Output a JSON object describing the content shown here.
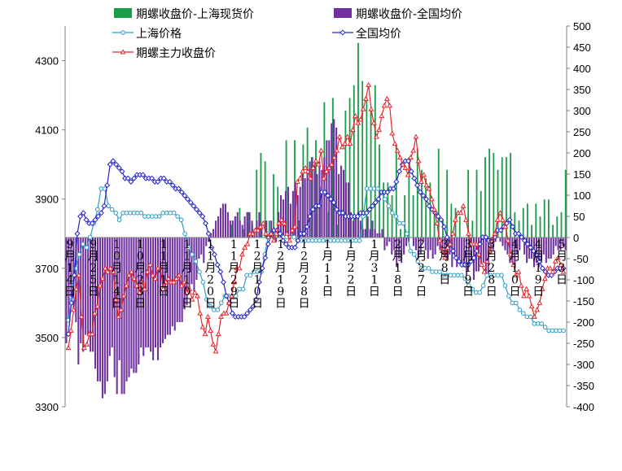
{
  "chart_data": {
    "type": "line",
    "title": "",
    "legend": {
      "placement": "top",
      "entries": [
        {
          "key": "bar_sh",
          "label": "期螺收盘价-上海现货价",
          "style": "bar"
        },
        {
          "key": "bar_nat",
          "label": "期螺收盘价-全国均价",
          "style": "bar"
        },
        {
          "key": "sh",
          "label": "上海价格",
          "style": "line-circle"
        },
        {
          "key": "nat",
          "label": "全国均价",
          "style": "line-diamond"
        },
        {
          "key": "fut",
          "label": "期螺主力收盘价",
          "style": "line-triangle"
        }
      ]
    },
    "colors": {
      "bar_sh": "#1a9c49",
      "bar_nat": "#7030a0",
      "sh": "#2e9bc4",
      "nat": "#2323c8",
      "fut": "#e8262b",
      "axis": "#808080"
    },
    "y_left": {
      "min": 3300,
      "max": 4400,
      "ticks": [
        "3300",
        "3500",
        "3700",
        "3900",
        "4100",
        "4300"
      ]
    },
    "y_right": {
      "min": -400,
      "max": 500,
      "ticks": [
        "-400",
        "-350",
        "-300",
        "-250",
        "-200",
        "-150",
        "-100",
        "-50",
        "0",
        "50",
        "100",
        "150",
        "200",
        "250",
        "300",
        "350",
        "400",
        "450",
        "500"
      ]
    },
    "x_tick_labels": [
      "9月14日",
      "9月25日",
      "10月14日",
      "10月23日",
      "11月1日",
      "11月10日",
      "11月20日",
      "11月29日",
      "12月10日",
      "12月19日",
      "12月28日",
      "1月11日",
      "1月22日",
      "1月31日",
      "2月18日",
      "2月27日",
      "3月8日",
      "3月19日",
      "3月28日",
      "4月10日",
      "4月19日",
      "5月3日"
    ],
    "series": [
      {
        "key": "sh",
        "name": "上海价格",
        "axis": "left",
        "values": [
          3550,
          3610,
          3700,
          3740,
          3770,
          3760,
          3790,
          3830,
          3870,
          3930,
          3930,
          3880,
          3870,
          3860,
          3840,
          3860,
          3860,
          3860,
          3860,
          3860,
          3860,
          3850,
          3850,
          3850,
          3850,
          3850,
          3860,
          3860,
          3860,
          3860,
          3850,
          3840,
          3800,
          3760,
          3740,
          3720,
          3690,
          3660,
          3610,
          3590,
          3580,
          3580,
          3600,
          3620,
          3620,
          3620,
          3620,
          3640,
          3640,
          3680,
          3680,
          3690,
          3690,
          3690,
          3740,
          3800,
          3800,
          3800,
          3800,
          3790,
          3790,
          3790,
          3790,
          3780,
          3780,
          3780,
          3780,
          3780,
          3780,
          3780,
          3780,
          3780,
          3780,
          3780,
          3780,
          3780,
          3780,
          3780,
          3780,
          3780,
          3780,
          3850,
          3930,
          3930,
          3930,
          3930,
          3920,
          3900,
          3880,
          3860,
          3850,
          3830,
          3830,
          3800,
          3750,
          3740,
          3720,
          3700,
          3700,
          3700,
          3690,
          3690,
          3690,
          3680,
          3680,
          3680,
          3680,
          3680,
          3680,
          3670,
          3650,
          3640,
          3630,
          3630,
          3650,
          3680,
          3680,
          3680,
          3680,
          3680,
          3650,
          3620,
          3600,
          3600,
          3580,
          3570,
          3560,
          3560,
          3540,
          3540,
          3540,
          3530,
          3520,
          3520,
          3520,
          3520,
          3520
        ]
      },
      {
        "key": "nat",
        "name": "全国均价",
        "axis": "left",
        "values": [
          3510,
          3600,
          3680,
          3800,
          3850,
          3860,
          3840,
          3830,
          3830,
          3840,
          3850,
          3860,
          3880,
          3940,
          4000,
          4010,
          4000,
          3990,
          3980,
          3960,
          3960,
          3950,
          3960,
          3970,
          3970,
          3970,
          3960,
          3960,
          3960,
          3950,
          3950,
          3960,
          3960,
          3950,
          3950,
          3940,
          3930,
          3930,
          3920,
          3910,
          3900,
          3890,
          3880,
          3870,
          3860,
          3850,
          3830,
          3800,
          3760,
          3740,
          3710,
          3690,
          3660,
          3620,
          3600,
          3570,
          3560,
          3560,
          3560,
          3560,
          3570,
          3580,
          3590,
          3610,
          3660,
          3700,
          3730,
          3770,
          3800,
          3810,
          3810,
          3800,
          3780,
          3770,
          3760,
          3760,
          3760,
          3780,
          3800,
          3800,
          3820,
          3850,
          3870,
          3880,
          3880,
          3920,
          3920,
          3910,
          3900,
          3890,
          3870,
          3860,
          3860,
          3850,
          3850,
          3850,
          3850,
          3850,
          3860,
          3860,
          3860,
          3870,
          3880,
          3890,
          3900,
          3920,
          3920,
          3920,
          3930,
          3930,
          3950,
          3980,
          4000,
          4010,
          4010,
          3980,
          3960,
          3940,
          3920,
          3910,
          3900,
          3880,
          3870,
          3860,
          3850,
          3840,
          3820,
          3790,
          3770,
          3750,
          3730,
          3720,
          3710,
          3710,
          3710,
          3720,
          3730,
          3750,
          3770,
          3790,
          3790,
          3780,
          3770,
          3790,
          3810,
          3810,
          3820,
          3830,
          3840,
          3820,
          3800,
          3800,
          3790,
          3780,
          3770,
          3760,
          3750,
          3740,
          3720,
          3700,
          3690,
          3680,
          3680,
          3690,
          3700,
          3700,
          3700
        ]
      },
      {
        "key": "fut",
        "name": "期螺主力收盘价",
        "axis": "left",
        "values": [
          3470,
          3520,
          3580,
          3640,
          3680,
          3560,
          3470,
          3480,
          3510,
          3510,
          3570,
          3590,
          3650,
          3670,
          3700,
          3690,
          3700,
          3690,
          3610,
          3560,
          3580,
          3620,
          3650,
          3680,
          3690,
          3670,
          3650,
          3630,
          3660,
          3640,
          3690,
          3710,
          3680,
          3670,
          3700,
          3700,
          3640,
          3660,
          3670,
          3660,
          3660,
          3670,
          3680,
          3650,
          3660,
          3630,
          3640,
          3610,
          3630,
          3620,
          3570,
          3530,
          3510,
          3560,
          3520,
          3480,
          3460,
          3510,
          3560,
          3570,
          3570,
          3600,
          3620,
          3660,
          3700,
          3700,
          3740,
          3760,
          3770,
          3800,
          3800,
          3810,
          3810,
          3820,
          3830,
          3800,
          3790,
          3800,
          3780,
          3800,
          3830,
          3840,
          3830,
          3800,
          3780,
          3810,
          3820,
          3950,
          3960,
          3980,
          3990,
          3980,
          3960,
          3990,
          4010,
          4000,
          4040,
          3960,
          3980,
          3990,
          4000,
          4020,
          4040,
          4080,
          4050,
          4060,
          4080,
          4060,
          4100,
          4140,
          4120,
          4130,
          4160,
          4190,
          4230,
          4160,
          4120,
          4080,
          4100,
          4140,
          4170,
          4190,
          4170,
          4090,
          4060,
          4040,
          4020,
          4000,
          3990,
          3970,
          4020,
          4040,
          4080,
          4010,
          3950,
          3970,
          3940,
          3930,
          3900,
          3870,
          3830,
          3780,
          3750,
          3730,
          3760,
          3770,
          3800,
          3840,
          3860,
          3860,
          3880,
          3840,
          3800,
          3770,
          3770,
          3770,
          3740,
          3710,
          3690,
          3720,
          3750,
          3780,
          3800,
          3840,
          3860,
          3840,
          3820,
          3780,
          3740,
          3710,
          3680,
          3690,
          3650,
          3620,
          3640,
          3620,
          3590,
          3560,
          3580,
          3600,
          3640,
          3670,
          3700,
          3700,
          3690,
          3720,
          3730,
          3710,
          3690
        ]
      },
      {
        "key": "bar_sh",
        "name": "期螺收盘价-上海现货价",
        "axis": "right",
        "type": "bar",
        "values": [
          0,
          0,
          0,
          0,
          0,
          0,
          0,
          0,
          0,
          0,
          0,
          0,
          0,
          0,
          0,
          0,
          0,
          0,
          0,
          0,
          0,
          0,
          0,
          0,
          0,
          0,
          0,
          0,
          0,
          0,
          0,
          0,
          0,
          0,
          0,
          0,
          0,
          0,
          0,
          0,
          0,
          0,
          0,
          0,
          0,
          0,
          0,
          0,
          0,
          0,
          0,
          0,
          0,
          0,
          0,
          0,
          0,
          0,
          0,
          0,
          0,
          0,
          0,
          0,
          0,
          0,
          0,
          0,
          0,
          0,
          0,
          0,
          0,
          0,
          0,
          0,
          0,
          0,
          30,
          0,
          50,
          0,
          70,
          0,
          20,
          0,
          60,
          0,
          30,
          0,
          160,
          0,
          200,
          0,
          180,
          0,
          40,
          0,
          150,
          0,
          120,
          0,
          10,
          0,
          230,
          0,
          70,
          0,
          230,
          0,
          40,
          0,
          220,
          0,
          260,
          0,
          190,
          0,
          230,
          0,
          120,
          0,
          320,
          0,
          60,
          0,
          330,
          0,
          30,
          0,
          70,
          0,
          300,
          0,
          330,
          0,
          360,
          0,
          460,
          0,
          370,
          0,
          330,
          0,
          300,
          0,
          360,
          0,
          220,
          0,
          130,
          0,
          130,
          0,
          100,
          0,
          220,
          0,
          20,
          0,
          100,
          0,
          190,
          0,
          100,
          0,
          210,
          0,
          160,
          0,
          140,
          0,
          130,
          0,
          70,
          0,
          210,
          0,
          40,
          0,
          160,
          0,
          80,
          0,
          70,
          0,
          50,
          0,
          0,
          0,
          160,
          0,
          40,
          0,
          160,
          0,
          110,
          0,
          190,
          0,
          210,
          0,
          200,
          0,
          160,
          0,
          190,
          0,
          190,
          0,
          200,
          0,
          60,
          0,
          40,
          0,
          70,
          0,
          80,
          0,
          30,
          0,
          80,
          0,
          50,
          0,
          90,
          0,
          90,
          0,
          30,
          0,
          50,
          0,
          60,
          0,
          160
        ]
      },
      {
        "key": "bar_nat",
        "name": "期螺收盘价-全国均价",
        "axis": "right",
        "type": "bar",
        "values": [
          -250,
          -200,
          -140,
          -170,
          -200,
          -300,
          -250,
          -270,
          -230,
          -230,
          -270,
          -270,
          -310,
          -340,
          -340,
          -380,
          -370,
          -340,
          -280,
          -260,
          -330,
          -370,
          -290,
          -370,
          -370,
          -340,
          -330,
          -310,
          -320,
          -320,
          -300,
          -260,
          -280,
          -260,
          -260,
          -270,
          -290,
          -260,
          -290,
          -260,
          -250,
          -240,
          -230,
          -230,
          -210,
          -220,
          -200,
          -200,
          -200,
          -170,
          -160,
          -120,
          -110,
          -130,
          -100,
          -50,
          -40,
          -60,
          -20,
          -10,
          10,
          20,
          40,
          50,
          70,
          80,
          80,
          60,
          40,
          40,
          50,
          60,
          40,
          30,
          50,
          60,
          60,
          40,
          20,
          40,
          60,
          30,
          0,
          40,
          10,
          40,
          10,
          -10,
          60,
          100,
          90,
          110,
          120,
          80,
          110,
          130,
          100,
          120,
          150,
          140,
          160,
          180,
          190,
          170,
          150,
          180,
          160,
          190,
          230,
          230,
          270,
          280,
          260,
          150,
          170,
          160,
          130,
          130,
          60,
          40,
          50,
          60,
          40,
          20,
          20,
          50,
          20,
          40,
          20,
          10,
          10,
          20,
          -30,
          -20,
          -10,
          -40,
          -30,
          -70,
          -50,
          -60,
          -40,
          -20,
          -10,
          0,
          -20,
          -30,
          -50,
          -40,
          -10,
          -30,
          -50,
          -30,
          -50,
          -40,
          -20,
          -30,
          -40,
          -50,
          -50,
          -40,
          -70,
          -40,
          -70,
          -50,
          -60,
          -70,
          -90,
          -70,
          -60,
          -100,
          -80,
          -80,
          -60,
          -60,
          -90,
          -90,
          -40,
          -30,
          -10,
          0,
          -10,
          -20,
          -30,
          -40,
          -60,
          -60,
          -70,
          -40,
          -30,
          0,
          -40,
          -60,
          -50,
          -50,
          -70,
          -60,
          -70,
          -60,
          -40,
          -60,
          -50,
          -50,
          -40,
          -20,
          -30,
          -30,
          -20,
          -30
        ]
      }
    ]
  }
}
